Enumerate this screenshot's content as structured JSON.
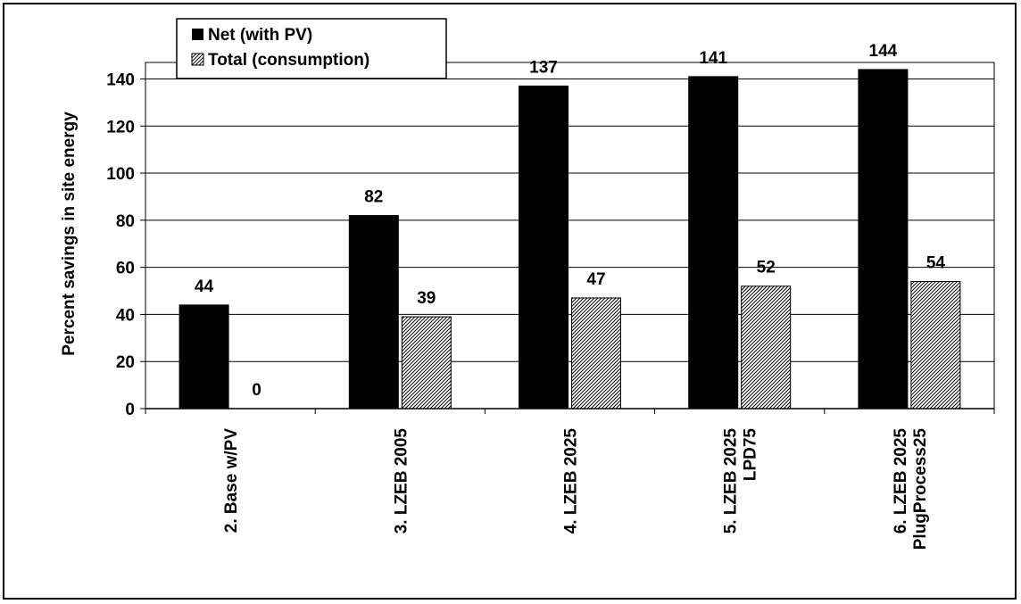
{
  "chart_data": {
    "type": "bar",
    "categories": [
      [
        "2. Base w/PV"
      ],
      [
        "3. LZEB 2005"
      ],
      [
        "4. LZEB 2025"
      ],
      [
        "5. LZEB 2025",
        "LPD75"
      ],
      [
        "6. LZEB 2025",
        "PlugProcess25"
      ]
    ],
    "series": [
      {
        "name": "Net (with PV)",
        "values": [
          44,
          82,
          137,
          141,
          144
        ],
        "color": "#000000",
        "pattern": "solid"
      },
      {
        "name": "Total (consumption)",
        "values": [
          0,
          39,
          47,
          52,
          54
        ],
        "color": "#000000",
        "pattern": "diagonal-hatch"
      }
    ],
    "data_labels": {
      "net": [
        "44",
        "82",
        "137",
        "141",
        "144"
      ],
      "total": [
        "0",
        "39",
        "47",
        "52",
        "54"
      ]
    },
    "ylabel": "Percent savings in site energy",
    "ylim": [
      0,
      140
    ],
    "yticks": [
      0,
      20,
      40,
      60,
      80,
      100,
      120,
      140
    ],
    "grid": true,
    "legend": "top-left"
  }
}
